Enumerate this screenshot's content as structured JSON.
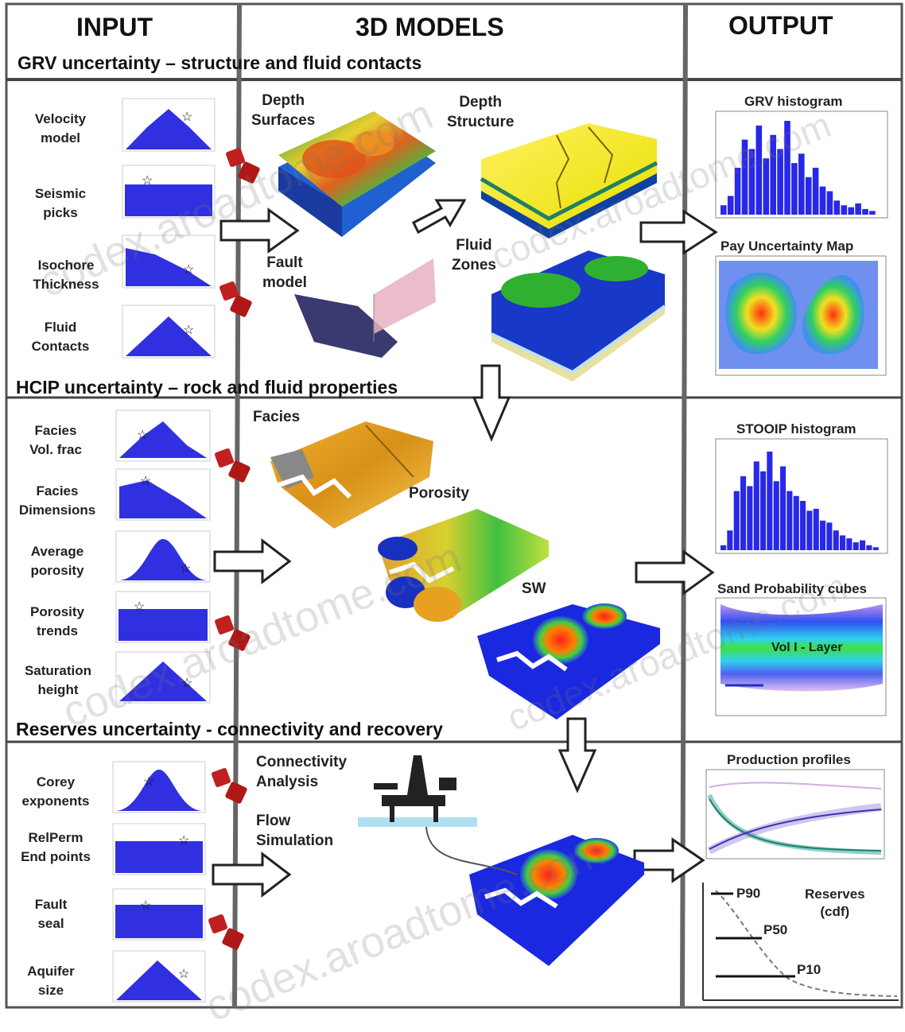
{
  "columns": {
    "input": "INPUT",
    "models": "3D MODELS",
    "output": "OUTPUT"
  },
  "sections": {
    "grv": "GRV uncertainty – structure and fluid contacts",
    "hcip": "HCIP uncertainty – rock and fluid properties",
    "reserves": "Reserves uncertainty - connectivity and recovery"
  },
  "inputs": {
    "grv": [
      "Velocity\nmodel",
      "Seismic\npicks",
      "Isochore\nThickness",
      "Fluid\nContacts"
    ],
    "hcip": [
      "Facies\nVol. frac",
      "Facies\nDimensions",
      "Average\nporosity",
      "Porosity\ntrends",
      "Saturation\nheight"
    ],
    "reserves": [
      "Corey\nexponents",
      "RelPerm\nEnd points",
      "Fault\nseal",
      "Aquifer\nsize"
    ]
  },
  "models": {
    "depth_surfaces": "Depth\nSurfaces",
    "depth_structure": "Depth\nStructure",
    "fault_model": "Fault\nmodel",
    "fluid_zones": "Fluid\nZones",
    "facies": "Facies",
    "porosity": "Porosity",
    "sw": "SW",
    "connectivity": "Connectivity\nAnalysis",
    "flow_simulation": "Flow\nSimulation"
  },
  "outputs": {
    "grv_histogram": "GRV histogram",
    "pay_map": "Pay Uncertainty Map",
    "stooip_histogram": "STOOIP histogram",
    "sand_cubes": "Sand Probability cubes",
    "sand_cube_text": "Vol I - Layer",
    "production_profiles": "Production profiles",
    "reserves_cdf": "Reserves\n(cdf)",
    "p90": "P90",
    "p50": "P50",
    "p10": "P10"
  },
  "watermark": "codex.aroadtome.com",
  "colors": {
    "distribution": "#3030e0",
    "grid": "#555555",
    "histogram": "#2828e8",
    "arrow_stroke": "#222222"
  }
}
